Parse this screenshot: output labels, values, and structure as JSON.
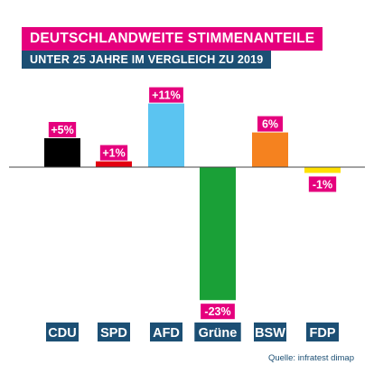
{
  "header": {
    "title": "DEUTSCHLANDWEITE STIMMENANTEILE",
    "subtitle": "UNTER 25 JAHRE IM VERGLEICH ZU 2019"
  },
  "source": "Quelle: infratest dimap",
  "colors": {
    "title_bg": "#e5007d",
    "subtitle_bg": "#1c4f74",
    "value_label_bg": "#e5007d",
    "category_label_bg": "#1c4f74"
  },
  "chart_data": {
    "type": "bar",
    "categories": [
      "CDU",
      "SPD",
      "AFD",
      "Grüne",
      "BSW",
      "FDP"
    ],
    "values": [
      5,
      1,
      11,
      -23,
      6,
      -1
    ],
    "value_labels": [
      "+5%",
      "+1%",
      "+11%",
      "-23%",
      "6%",
      "-1%"
    ],
    "bar_colors": [
      "#000000",
      "#e3000f",
      "#5bc4f1",
      "#1aa037",
      "#f5821f",
      "#ffe000"
    ],
    "ylim": [
      -23,
      11
    ],
    "grid": false,
    "xlabel": "",
    "ylabel": ""
  }
}
